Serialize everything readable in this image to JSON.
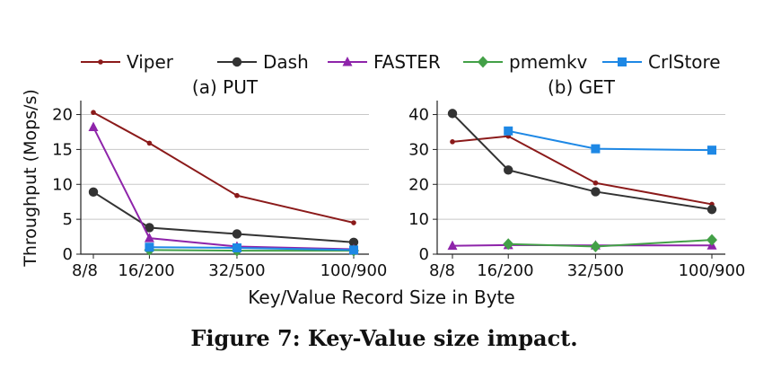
{
  "chart_data": [
    {
      "type": "line",
      "title": "(a) PUT",
      "ylabel": "Throughput (Mops/s)",
      "categories": [
        "8/8",
        "16/200",
        "32/500",
        "100/900"
      ],
      "x": [
        8,
        200,
        500,
        900
      ],
      "ylim": [
        0,
        22
      ],
      "yticks": [
        0,
        5,
        10,
        15,
        20
      ],
      "grid": "y",
      "series": [
        {
          "name": "Viper",
          "color": "#8b1a1a",
          "marker": "dot",
          "x": [
            8,
            200,
            500,
            900
          ],
          "values": [
            20.3,
            15.9,
            8.4,
            4.5
          ]
        },
        {
          "name": "Dash",
          "color": "#333333",
          "marker": "circle",
          "x": [
            8,
            200,
            500,
            900
          ],
          "values": [
            8.9,
            3.8,
            2.9,
            1.7
          ]
        },
        {
          "name": "FASTER",
          "color": "#8e24aa",
          "marker": "triangle",
          "x": [
            8,
            200,
            500,
            900
          ],
          "values": [
            18.2,
            2.3,
            1.1,
            0.7
          ]
        },
        {
          "name": "pmemkv",
          "color": "#43a047",
          "marker": "diamond",
          "x": [
            200,
            500,
            900
          ],
          "values": [
            0.6,
            0.5,
            0.5
          ]
        },
        {
          "name": "CrlStore",
          "color": "#1e88e5",
          "marker": "square",
          "x": [
            200,
            500,
            900
          ],
          "values": [
            1.0,
            0.9,
            0.6
          ]
        }
      ]
    },
    {
      "type": "line",
      "title": "(b) GET",
      "categories": [
        "8/8",
        "16/200",
        "32/500",
        "100/900"
      ],
      "x": [
        8,
        200,
        500,
        900
      ],
      "ylim": [
        0,
        44
      ],
      "yticks": [
        0,
        10,
        20,
        30,
        40
      ],
      "grid": "y",
      "series": [
        {
          "name": "Viper",
          "color": "#8b1a1a",
          "marker": "dot",
          "x": [
            8,
            200,
            500,
            900
          ],
          "values": [
            32.2,
            33.8,
            20.4,
            14.3
          ]
        },
        {
          "name": "Dash",
          "color": "#333333",
          "marker": "circle",
          "x": [
            8,
            200,
            500,
            900
          ],
          "values": [
            40.3,
            24.1,
            17.9,
            12.8
          ]
        },
        {
          "name": "FASTER",
          "color": "#8e24aa",
          "marker": "triangle",
          "x": [
            8,
            200,
            500,
            900
          ],
          "values": [
            2.4,
            2.6,
            2.5,
            2.5
          ]
        },
        {
          "name": "pmemkv",
          "color": "#43a047",
          "marker": "diamond",
          "x": [
            200,
            500,
            900
          ],
          "values": [
            2.9,
            2.2,
            4.1
          ]
        },
        {
          "name": "CrlStore",
          "color": "#1e88e5",
          "marker": "square",
          "x": [
            200,
            500,
            900
          ],
          "values": [
            35.3,
            30.2,
            29.8
          ]
        }
      ]
    }
  ],
  "xlabel": "Key/Value Record Size in Byte",
  "legend": {
    "placement": "top",
    "items": [
      "Viper",
      "Dash",
      "FASTER",
      "pmemkv",
      "CrlStore"
    ]
  },
  "caption": "Figure 7: Key-Value size impact."
}
